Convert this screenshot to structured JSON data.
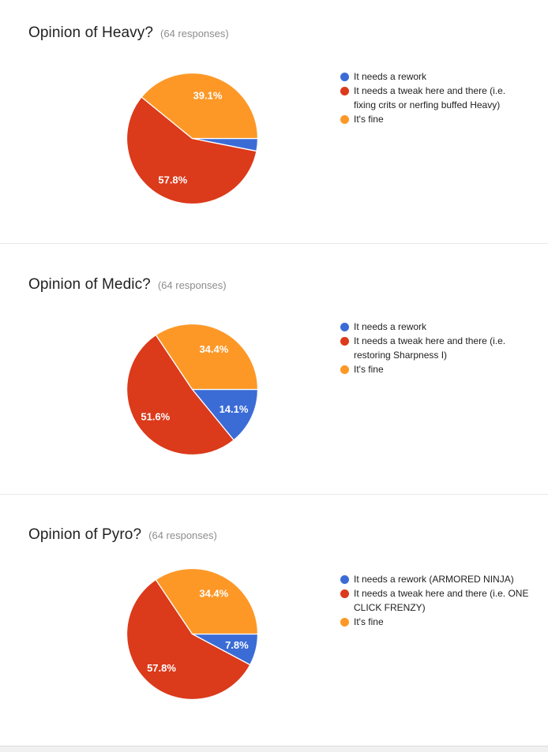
{
  "palette": [
    "#3b6cd6",
    "#db3a1b",
    "#fd9827"
  ],
  "palette_roles": [
    "rework",
    "tweak",
    "fine"
  ],
  "chart_data": [
    {
      "type": "pie",
      "title": "Opinion of Heavy?",
      "responses_note": "(64 responses)",
      "categories": [
        "It needs a rework",
        "It needs a tweak here and there (i.e. fixing crits or nerfing buffed Heavy)",
        "It's fine"
      ],
      "values": [
        3.1,
        57.8,
        39.1
      ],
      "slice_labels": [
        "",
        "57.8%",
        "39.1%"
      ],
      "legend_position": "right",
      "start": "east",
      "direction": "clockwise"
    },
    {
      "type": "pie",
      "title": "Opinion of Medic?",
      "responses_note": "(64 responses)",
      "categories": [
        "It needs a rework",
        "It needs a tweak here and there (i.e. restoring Sharpness I)",
        "It's fine"
      ],
      "values": [
        14.1,
        51.6,
        34.4
      ],
      "slice_labels": [
        "14.1%",
        "51.6%",
        "34.4%"
      ],
      "legend_position": "right",
      "start": "east",
      "direction": "clockwise"
    },
    {
      "type": "pie",
      "title": "Opinion of Pyro?",
      "responses_note": "(64 responses)",
      "categories": [
        "It needs a rework (ARMORED NINJA)",
        "It needs a tweak here and there (i.e. ONE CLICK FRENZY)",
        "It's fine"
      ],
      "values": [
        7.8,
        57.8,
        34.4
      ],
      "slice_labels": [
        "7.8%",
        "57.8%",
        "34.4%"
      ],
      "legend_position": "right",
      "start": "east",
      "direction": "clockwise"
    }
  ]
}
